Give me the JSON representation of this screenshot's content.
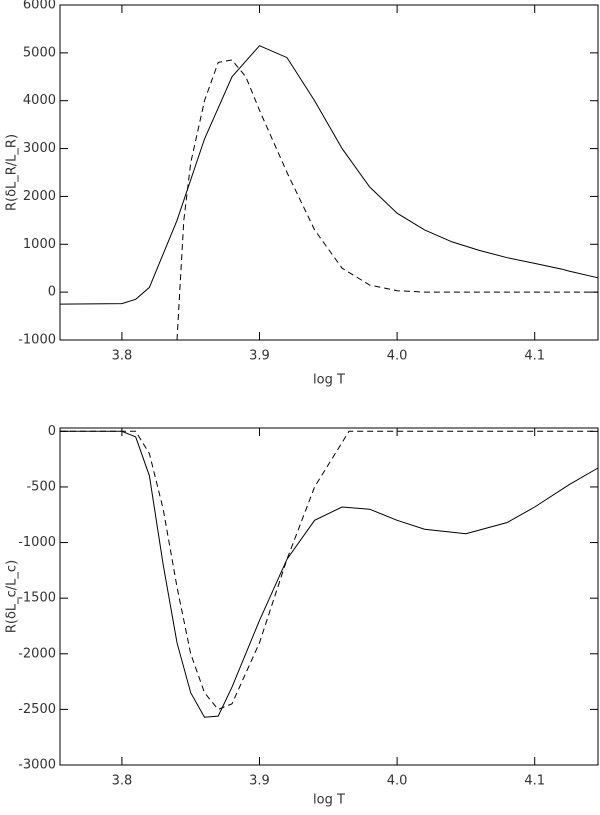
{
  "chart_data": [
    {
      "type": "line",
      "xlabel": "log T",
      "ylabel": "R(δL_R/L_R)",
      "xlim": [
        3.755,
        4.146
      ],
      "ylim": [
        -1000,
        6000
      ],
      "xticks": [
        3.8,
        3.9,
        {
          "value": 4,
          "label": "4.0"
        },
        4.1
      ],
      "yticks": [
        -1000,
        0,
        1000,
        2000,
        3000,
        4000,
        5000,
        6000
      ],
      "series": [
        {
          "style": "solid",
          "color": "#000000",
          "x": [
            3.755,
            3.8,
            3.81,
            3.82,
            3.84,
            3.86,
            3.88,
            3.9,
            3.92,
            3.94,
            3.96,
            3.98,
            4.0,
            4.02,
            4.04,
            4.06,
            4.08,
            4.1,
            4.12,
            4.125,
            4.146
          ],
          "values": [
            -250,
            -240,
            -150,
            100,
            1500,
            3200,
            4500,
            5150,
            4900,
            4000,
            3000,
            2200,
            1650,
            1300,
            1050,
            870,
            720,
            600,
            480,
            440,
            300
          ]
        },
        {
          "style": "dashed",
          "color": "#000000",
          "x": [
            3.84,
            3.845,
            3.85,
            3.86,
            3.87,
            3.88,
            3.89,
            3.9,
            3.92,
            3.94,
            3.96,
            3.98,
            4.0,
            4.02,
            4.146
          ],
          "values": [
            -1000,
            1500,
            2700,
            4000,
            4800,
            4850,
            4500,
            3800,
            2500,
            1300,
            500,
            150,
            30,
            0,
            0
          ]
        }
      ]
    },
    {
      "type": "line",
      "xlabel": "log T",
      "ylabel": "R(δL_c/L_c)",
      "xlim": [
        3.755,
        4.146
      ],
      "ylim": [
        -3000,
        30
      ],
      "xticks": [
        3.8,
        3.9,
        {
          "value": 4,
          "label": "4.0"
        },
        4.1
      ],
      "yticks": [
        -3000,
        -2500,
        -2000,
        -1500,
        -1000,
        -500,
        0
      ],
      "series": [
        {
          "style": "solid",
          "color": "#000000",
          "x": [
            3.755,
            3.8,
            3.81,
            3.82,
            3.83,
            3.84,
            3.85,
            3.86,
            3.87,
            3.88,
            3.9,
            3.92,
            3.94,
            3.96,
            3.98,
            4.0,
            4.02,
            4.05,
            4.08,
            4.1,
            4.125,
            4.146
          ],
          "values": [
            0,
            0,
            -50,
            -400,
            -1200,
            -1900,
            -2350,
            -2570,
            -2560,
            -2300,
            -1700,
            -1150,
            -800,
            -680,
            -700,
            -800,
            -880,
            -920,
            -820,
            -680,
            -480,
            -330
          ]
        },
        {
          "style": "dashed",
          "color": "#000000",
          "x": [
            3.755,
            3.81,
            3.82,
            3.83,
            3.84,
            3.85,
            3.86,
            3.87,
            3.88,
            3.9,
            3.92,
            3.94,
            3.96,
            3.965,
            4.146
          ],
          "values": [
            0,
            0,
            -200,
            -700,
            -1400,
            -2000,
            -2350,
            -2500,
            -2450,
            -1900,
            -1150,
            -500,
            -100,
            0,
            0
          ]
        }
      ]
    }
  ]
}
